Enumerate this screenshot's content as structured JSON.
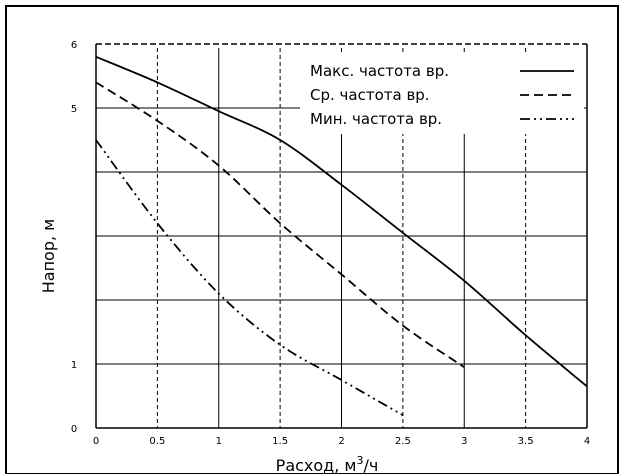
{
  "chart_data": {
    "type": "line",
    "title": "",
    "xlabel_main": "Расход, м",
    "xlabel_sup": "3",
    "xlabel_tail": "/ч",
    "ylabel": "Напор, м",
    "xlim": [
      0,
      4
    ],
    "ylim": [
      0,
      6
    ],
    "x_ticks": [
      0,
      0.5,
      1,
      1.5,
      2,
      2.5,
      3,
      3.5,
      4
    ],
    "x_tick_labels": [
      "0",
      "0.5",
      "1",
      "1.5",
      "2",
      "2.5",
      "3",
      "3.5",
      "4"
    ],
    "y_ticks": [
      0,
      1,
      5,
      6
    ],
    "y_tick_labels": [
      "0",
      "1",
      "5",
      "6"
    ],
    "grid_y": [
      0,
      1,
      2,
      3,
      4,
      5,
      6
    ],
    "grid": true,
    "legend_position": "top-right",
    "colors": {
      "line": "#000000",
      "grid": "#000000",
      "background": "#ffffff",
      "frame": "#000000"
    },
    "series": [
      {
        "name": "Макс. частота вр.",
        "style": "solid",
        "x": [
          0,
          0.5,
          1,
          1.5,
          2,
          2.5,
          3,
          3.5,
          4
        ],
        "y": [
          5.8,
          5.4,
          4.95,
          4.5,
          3.8,
          3.05,
          2.3,
          1.45,
          0.65
        ]
      },
      {
        "name": "Ср. частота вр.",
        "style": "dashed",
        "x": [
          0,
          0.5,
          1,
          1.5,
          2,
          2.5,
          3
        ],
        "y": [
          5.4,
          4.8,
          4.1,
          3.2,
          2.4,
          1.6,
          0.95
        ]
      },
      {
        "name": "Мин. частота вр.",
        "style": "dashdot",
        "x": [
          0,
          0.5,
          1,
          1.5,
          2,
          2.5
        ],
        "y": [
          4.5,
          3.2,
          2.1,
          1.3,
          0.75,
          0.2
        ]
      }
    ]
  }
}
